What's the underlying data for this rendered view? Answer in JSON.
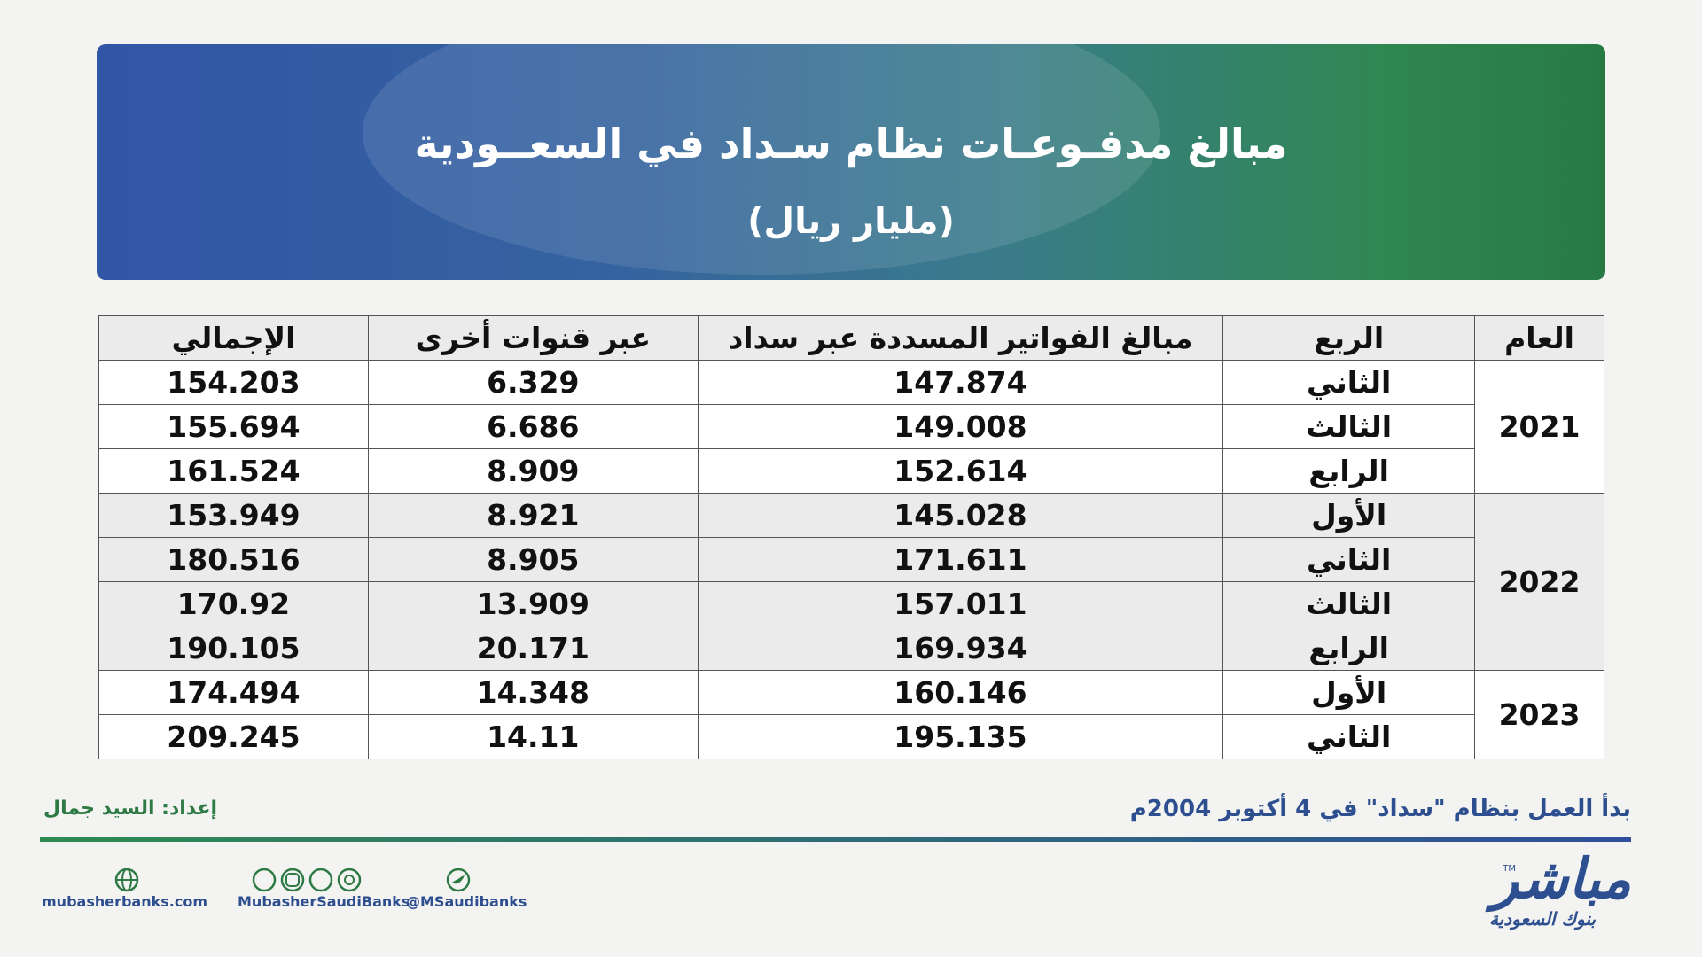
{
  "header": {
    "title": "مبالغ مدفـوعـات نظام سـداد في السعــودية",
    "subtitle": "(مليار ريال)"
  },
  "table": {
    "headers": [
      "العام",
      "الربع",
      "مبالغ الفواتير المسددة عبر سداد",
      "عبر قنوات أخرى",
      "الإجمالي"
    ],
    "groups": [
      {
        "year": "2021",
        "rows": [
          [
            "الثاني",
            "147.874",
            "6.329",
            "154.203"
          ],
          [
            "الثالث",
            "149.008",
            "6.686",
            "155.694"
          ],
          [
            "الرابع",
            "152.614",
            "8.909",
            "161.524"
          ]
        ]
      },
      {
        "year": "2022",
        "rows": [
          [
            "الأول",
            "145.028",
            "8.921",
            "153.949"
          ],
          [
            "الثاني",
            "171.611",
            "8.905",
            "180.516"
          ],
          [
            "الثالث",
            "157.011",
            "13.909",
            "170.92"
          ],
          [
            "الرابع",
            "169.934",
            "20.171",
            "190.105"
          ]
        ]
      },
      {
        "year": "2023",
        "rows": [
          [
            "الأول",
            "160.146",
            "14.348",
            "174.494"
          ],
          [
            "الثاني",
            "195.135",
            "14.11",
            "209.245"
          ]
        ]
      }
    ]
  },
  "footer": {
    "note": "بدأ العمل بنظام \"سداد\" في 4 أكتوبر 2004م",
    "author": "إعداد: السيد جمال",
    "website": "mubasherbanks.com",
    "facebook": "MubasherSaudiBanks",
    "twitter": "@MSaudibanks",
    "logo": {
      "name": "مباشر",
      "tagline": "بنوك السعودية",
      "tm": "TM"
    }
  }
}
